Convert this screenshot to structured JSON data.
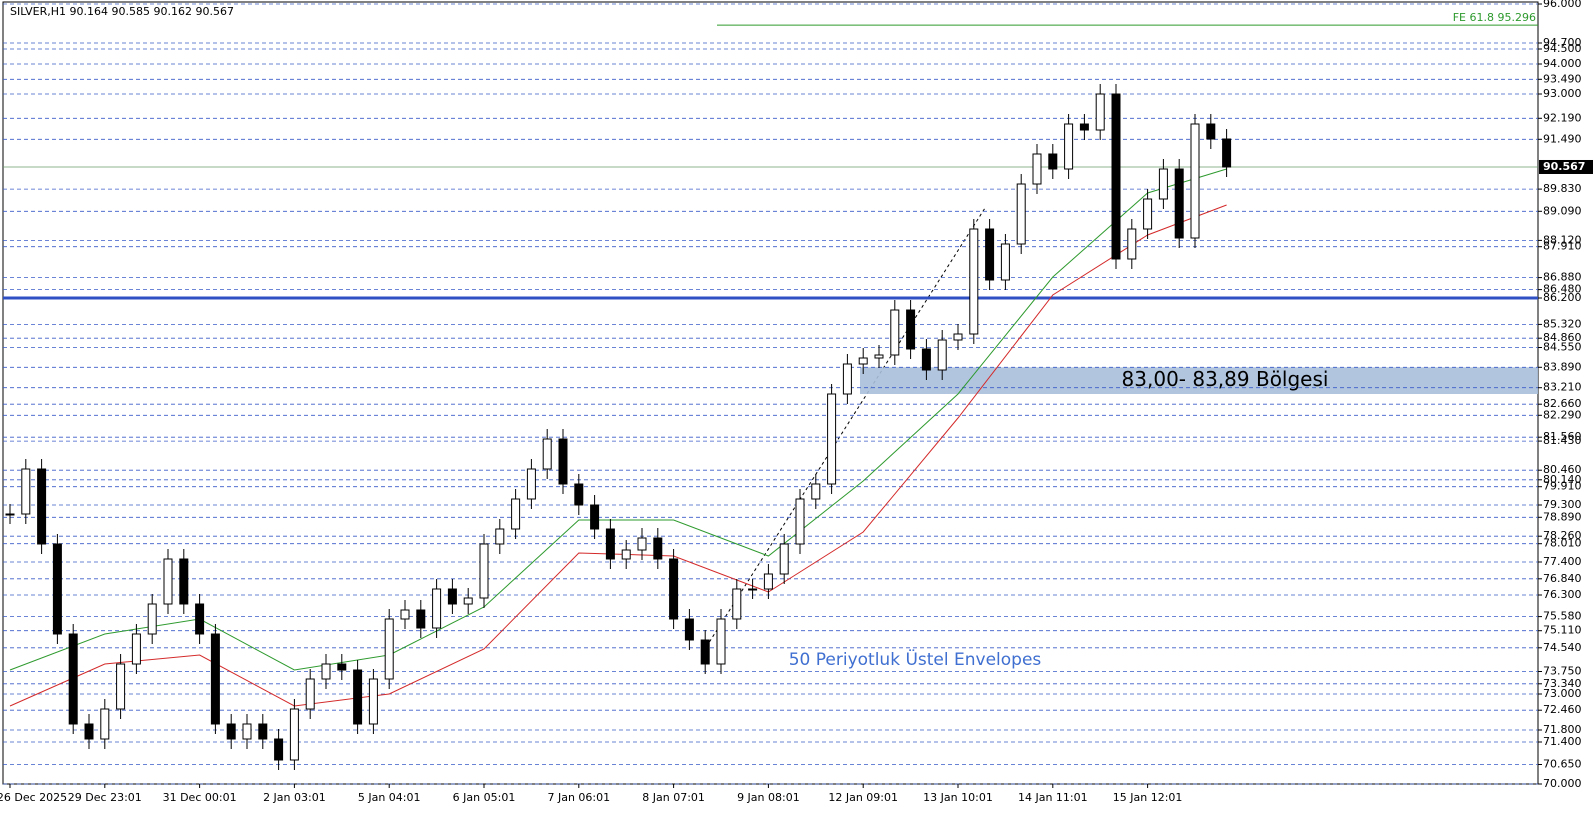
{
  "chart_data": {
    "type": "candlestick",
    "title": "SILVER,H1  90.164 90.585 90.162 90.567",
    "categories": [
      "26 Dec 2025",
      null,
      null,
      null,
      null,
      null,
      "29 Dec 23:01",
      null,
      null,
      null,
      null,
      null,
      "31 Dec 00:01",
      null,
      null,
      null,
      null,
      null,
      "2 Jan 03:01",
      null,
      null,
      null,
      null,
      null,
      "5 Jan 04:01",
      null,
      null,
      null,
      null,
      null,
      "6 Jan 05:01",
      null,
      null,
      null,
      null,
      null,
      "7 Jan 06:01",
      null,
      null,
      null,
      null,
      null,
      "8 Jan 07:01",
      null,
      null,
      null,
      null,
      null,
      "9 Jan 08:01",
      null,
      null,
      null,
      null,
      null,
      "12 Jan 09:01",
      null,
      null,
      null,
      null,
      null,
      "13 Jan 10:01",
      null,
      null,
      null,
      null,
      null,
      "14 Jan 11:01",
      null,
      null,
      null,
      null,
      null,
      "15 Jan 12:01",
      null,
      null,
      null,
      null,
      null
    ],
    "values": [
      79.0,
      80.5,
      78.0,
      75.0,
      72.0,
      71.5,
      72.5,
      74.0,
      75.0,
      76.0,
      77.5,
      76.0,
      75.0,
      72.0,
      71.5,
      72.0,
      71.5,
      70.8,
      72.5,
      73.5,
      74.0,
      73.8,
      72.0,
      73.5,
      75.5,
      75.8,
      75.2,
      76.5,
      76.0,
      76.2,
      78.0,
      78.5,
      79.5,
      80.5,
      81.5,
      80.0,
      79.3,
      78.5,
      77.5,
      77.8,
      78.2,
      77.5,
      75.5,
      74.8,
      74.0,
      75.5,
      76.5,
      76.5,
      77.0,
      78.0,
      79.5,
      80.0,
      83.0,
      84.0,
      84.2,
      84.3,
      85.8,
      84.5,
      83.8,
      84.8,
      85.0,
      88.5,
      86.8,
      88.0,
      90.0,
      91.0,
      90.5,
      92.0,
      91.8,
      93.0,
      87.5,
      88.5,
      89.5,
      90.5,
      88.2,
      92.0,
      91.5,
      90.567
    ],
    "envelopes": {
      "x": [
        0,
        6,
        12,
        18,
        24,
        30,
        36,
        42,
        48,
        54,
        60,
        66,
        72,
        77
      ],
      "series": [
        {
          "name": "upper",
          "color": "#2e9a2e",
          "values": [
            73.8,
            75.0,
            75.5,
            73.8,
            74.3,
            75.9,
            78.8,
            78.8,
            77.6,
            80.1,
            83.0,
            86.9,
            89.7,
            90.5
          ]
        },
        {
          "name": "lower",
          "color": "#d42a2a",
          "values": [
            72.6,
            74.0,
            74.3,
            72.6,
            73.0,
            74.5,
            77.7,
            77.6,
            76.4,
            78.4,
            82.2,
            86.3,
            88.3,
            89.3
          ]
        }
      ]
    },
    "ylim": [
      70,
      96
    ],
    "yticks": [
      {
        "value": 96,
        "label": "96.000"
      },
      {
        "value": 94.7,
        "label": "94.700"
      },
      {
        "value": 94.5,
        "label": "94.500"
      },
      {
        "value": 94,
        "label": "94.000"
      },
      {
        "value": 93.49,
        "label": "93.490"
      },
      {
        "value": 93,
        "label": "93.000"
      },
      {
        "value": 92.19,
        "label": "92.190"
      },
      {
        "value": 91.49,
        "label": "91.490"
      },
      {
        "value": 89.83,
        "label": "89.830"
      },
      {
        "value": 89.09,
        "label": "89.090"
      },
      {
        "value": 88.12,
        "label": "88.120"
      },
      {
        "value": 87.91,
        "label": "87.910"
      },
      {
        "value": 86.88,
        "label": "86.880"
      },
      {
        "value": 86.48,
        "label": "86.480"
      },
      {
        "value": 86.2,
        "label": "86.200"
      },
      {
        "value": 85.32,
        "label": "85.320"
      },
      {
        "value": 84.86,
        "label": "84.860"
      },
      {
        "value": 84.55,
        "label": "84.550"
      },
      {
        "value": 83.89,
        "label": "83.890"
      },
      {
        "value": 83.21,
        "label": "83.210"
      },
      {
        "value": 82.66,
        "label": "82.660"
      },
      {
        "value": 82.29,
        "label": "82.290"
      },
      {
        "value": 81.56,
        "label": "81.560"
      },
      {
        "value": 81.43,
        "label": "81.430"
      },
      {
        "value": 80.46,
        "label": "80.460"
      },
      {
        "value": 80.14,
        "label": "80.140"
      },
      {
        "value": 79.91,
        "label": "79.910"
      },
      {
        "value": 79.3,
        "label": "79.300"
      },
      {
        "value": 78.89,
        "label": "78.890"
      },
      {
        "value": 78.26,
        "label": "78.260"
      },
      {
        "value": 78.01,
        "label": "78.010"
      },
      {
        "value": 77.4,
        "label": "77.400"
      },
      {
        "value": 76.84,
        "label": "76.840"
      },
      {
        "value": 76.3,
        "label": "76.300"
      },
      {
        "value": 75.58,
        "label": "75.580"
      },
      {
        "value": 75.11,
        "label": "75.110"
      },
      {
        "value": 74.54,
        "label": "74.540"
      },
      {
        "value": 73.75,
        "label": "73.750"
      },
      {
        "value": 73.34,
        "label": "73.340"
      },
      {
        "value": 73,
        "label": "73.000"
      },
      {
        "value": 72.46,
        "label": "72.460"
      },
      {
        "value": 71.8,
        "label": "71.800"
      },
      {
        "value": 71.4,
        "label": "71.400"
      },
      {
        "value": 70.65,
        "label": "70.650"
      },
      {
        "value": 70,
        "label": "70.000"
      }
    ],
    "current_price": {
      "value": 90.567,
      "label": "90.567"
    },
    "key_level": 86.2,
    "fibo": {
      "value": 95.296,
      "label": "FE 61.8 95.296"
    },
    "zone": {
      "from": 83,
      "to": 83.89,
      "label": "83,00- 83,89 Bölgesi"
    },
    "annotation": "50 Periyotluk Üstel Envelopes"
  }
}
